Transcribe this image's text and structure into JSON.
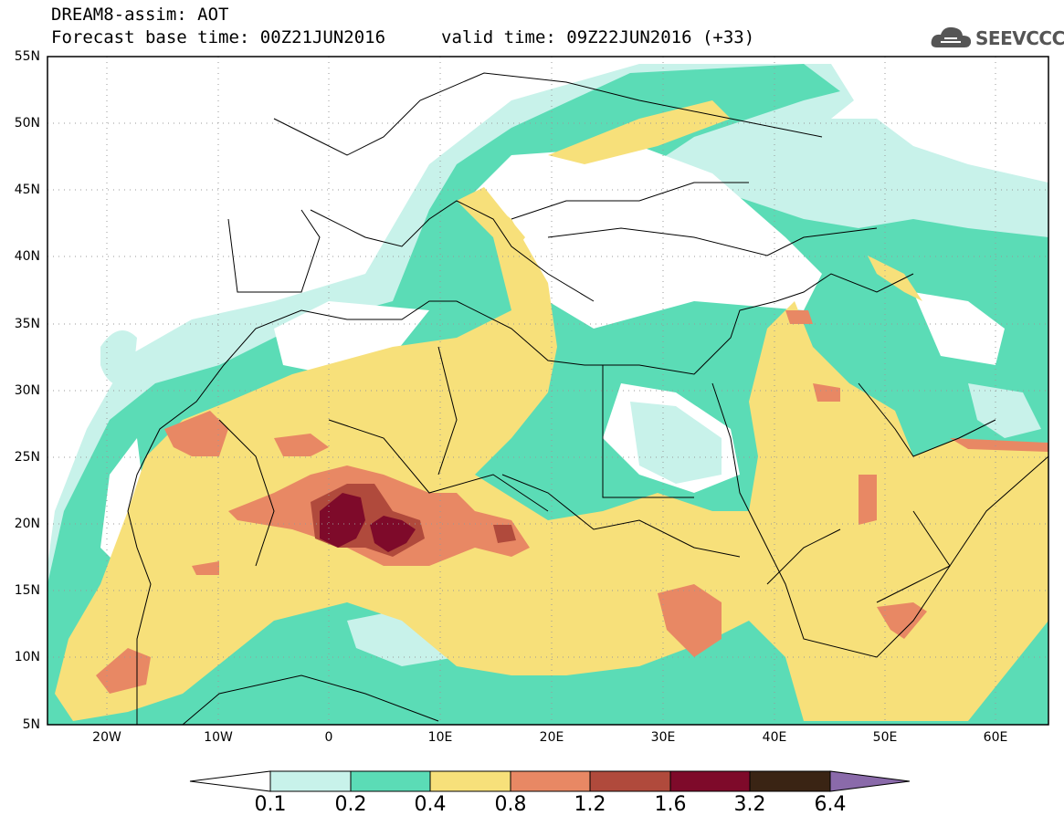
{
  "header": {
    "title": "DREAM8-assim: AOT",
    "base_time": "Forecast base time: 00Z21JUN2016",
    "valid_time": "valid time: 09Z22JUN2016 (+33)"
  },
  "logo": {
    "text": "SEEVCCC",
    "icon": "cloud-icon"
  },
  "map": {
    "lat_labels": [
      "55N",
      "50N",
      "45N",
      "40N",
      "35N",
      "30N",
      "25N",
      "20N",
      "15N",
      "10N",
      "5N"
    ],
    "lon_labels": [
      "20W",
      "10W",
      "0",
      "10E",
      "20E",
      "30E",
      "40E",
      "50E",
      "60E"
    ]
  },
  "legend": {
    "labels": [
      "0.1",
      "0.2",
      "0.4",
      "0.8",
      "1.2",
      "1.6",
      "3.2",
      "6.4"
    ],
    "colors": [
      "#ffffff",
      "#c8f2ea",
      "#5bdcb6",
      "#f7e07a",
      "#e88864",
      "#b04a3c",
      "#7e0a2a",
      "#3a2414",
      "#8a6aaa"
    ]
  }
}
